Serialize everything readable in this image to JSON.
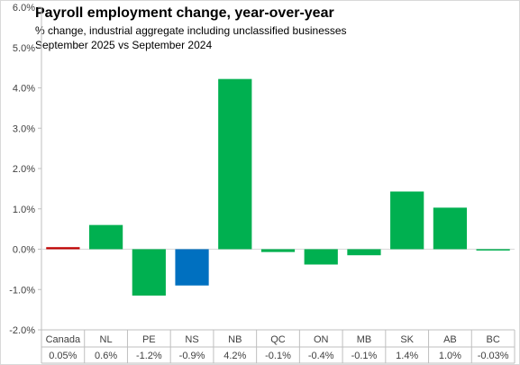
{
  "chart_data": {
    "type": "bar",
    "title": "Payroll employment change, year-over-year",
    "subtitle_lines": [
      "% change, industrial aggregate  including unclassified businesses",
      "September 2025 vs September 2024"
    ],
    "categories": [
      "Canada",
      "NL",
      "PE",
      "NS",
      "NB",
      "QC",
      "ON",
      "MB",
      "SK",
      "AB",
      "BC"
    ],
    "values": [
      0.05,
      0.6,
      -1.15,
      -0.9,
      4.22,
      -0.07,
      -0.38,
      -0.15,
      1.43,
      1.03,
      -0.03
    ],
    "value_labels": [
      "0.05%",
      "0.6%",
      "-1.2%",
      "-0.9%",
      "4.2%",
      "-0.1%",
      "-0.4%",
      "-0.1%",
      "1.4%",
      "1.0%",
      "-0.03%"
    ],
    "bar_colors": [
      "#c00000",
      "#00b050",
      "#00b050",
      "#0070c0",
      "#00b050",
      "#00b050",
      "#00b050",
      "#00b050",
      "#00b050",
      "#00b050",
      "#00b050"
    ],
    "ylim": [
      -2.0,
      6.0
    ],
    "yticks": [
      -2,
      -1,
      0,
      1,
      2,
      3,
      4,
      5,
      6
    ],
    "ytick_labels": [
      "-2.0%",
      "-1.0%",
      "0.0%",
      "1.0%",
      "2.0%",
      "3.0%",
      "4.0%",
      "5.0%",
      "6.0%"
    ],
    "grid": false,
    "legend": "none",
    "colors": {
      "axis": "#bfbfbf",
      "zero_line": "#d9d9d9",
      "text": "#404040"
    }
  }
}
